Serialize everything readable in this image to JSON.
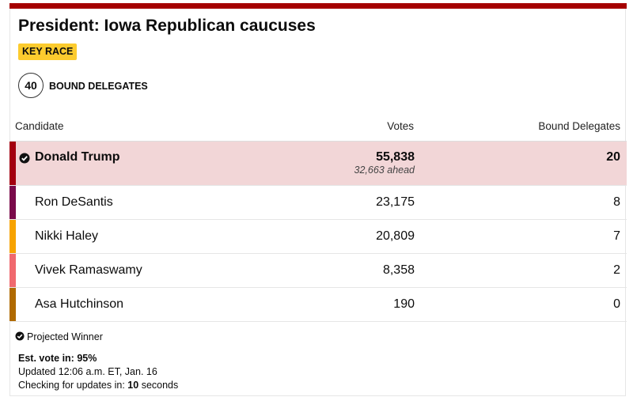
{
  "header": {
    "title": "President: Iowa Republican caucuses",
    "badge": "KEY RACE",
    "delegate_count": "40",
    "delegate_label": "BOUND DELEGATES"
  },
  "table": {
    "columns": [
      "Candidate",
      "Votes",
      "Bound Delegates"
    ],
    "rows": [
      {
        "name": "Donald Trump",
        "votes": "55,838",
        "note": "32,663 ahead",
        "delegates": "20",
        "color": "#a3000f",
        "winner": true
      },
      {
        "name": "Ron DeSantis",
        "votes": "23,175",
        "delegates": "8",
        "color": "#7a0a4a"
      },
      {
        "name": "Nikki Haley",
        "votes": "20,809",
        "delegates": "7",
        "color": "#f7a300"
      },
      {
        "name": "Vivek Ramaswamy",
        "votes": "8,358",
        "delegates": "2",
        "color": "#f0696e"
      },
      {
        "name": "Asa Hutchinson",
        "votes": "190",
        "delegates": "0",
        "color": "#b06a00"
      }
    ]
  },
  "footer": {
    "legend": "Projected Winner",
    "est_vote": "Est. vote in: 95%",
    "updated": "Updated 12:06 a.m. ET, Jan. 16",
    "checking_prefix": "Checking for updates in:",
    "checking_value": "10",
    "checking_suffix": "seconds"
  }
}
